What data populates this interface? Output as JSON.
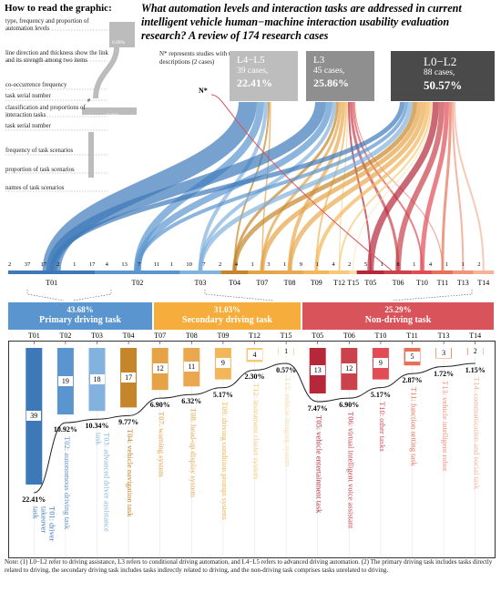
{
  "legend": {
    "title": "How to read the graphic:",
    "items": [
      "type, frequency and proportion of automation levels",
      "line direction and thickness show the link and its strength among two items",
      "co-occurrence frequency",
      "task serial number",
      "classification and proportions of interaction tasks",
      "task serial number",
      "frequency of task scenarios",
      "proportion of task scenarios",
      "names of task scenarios"
    ],
    "sample_pct_a": "0.00%",
    "sample_pct_b": "0.00%",
    "sample_hash": "#"
  },
  "title": "What automation levels and interaction tasks are addressed in current intelligent vehicle human−machine interaction usability evaluation research? A review of 174 research cases",
  "nstar_note": "N* represents studies with unclear automation level descriptions (2 cases)",
  "nstar_label": "N*",
  "automation_levels": [
    {
      "name": "L4−L5",
      "cases": "39 cases,",
      "pct": "22.41%",
      "color": "#bdbdbd"
    },
    {
      "name": "L3",
      "cases": "45 cases,",
      "pct": "25.86%",
      "color": "#8f8f8f"
    },
    {
      "name": "L0−L2",
      "cases": "88 cases,",
      "pct": "50.57%",
      "color": "#4a4a4a"
    }
  ],
  "flow_bar_tasks": [
    "T01",
    "T02",
    "T03",
    "T04",
    "T07",
    "T08",
    "T09",
    "T12",
    "T15",
    "T05",
    "T06",
    "T10",
    "T11",
    "T13",
    "T14"
  ],
  "flow_counts": [
    {
      "v": "2"
    },
    {
      "v": "37"
    },
    {
      "v": "17"
    },
    {
      "v": "2"
    },
    {
      "v": "1"
    },
    {
      "v": "17"
    },
    {
      "v": "4"
    },
    {
      "v": "13"
    },
    {
      "v": "7"
    },
    {
      "v": "11"
    },
    {
      "v": "1"
    },
    {
      "v": "10"
    },
    {
      "v": "7"
    },
    {
      "v": "2"
    },
    {
      "v": "4"
    },
    {
      "v": "1"
    },
    {
      "v": "3"
    },
    {
      "v": "1"
    },
    {
      "v": "9"
    },
    {
      "v": "1"
    },
    {
      "v": "4"
    },
    {
      "v": "2"
    },
    {
      "v": "5"
    },
    {
      "v": "1"
    },
    {
      "v": "8"
    },
    {
      "v": "1"
    },
    {
      "v": "4"
    },
    {
      "v": "1"
    },
    {
      "v": "1"
    },
    {
      "v": "2"
    }
  ],
  "categories": [
    {
      "pct": "43.68%",
      "name": "Primary driving task",
      "color": "#5b95cf"
    },
    {
      "pct": "31.03%",
      "name": "Secondary driving task",
      "color": "#f6ad3c"
    },
    {
      "pct": "25.29%",
      "name": "Non-driving task",
      "color": "#d9535a"
    }
  ],
  "tasks": [
    {
      "id": "T01",
      "count": 39,
      "pct": "22.41%",
      "name": "T01: driver takeover task",
      "color": "#3d79b9"
    },
    {
      "id": "T02",
      "count": 19,
      "pct": "10.92%",
      "name": "T02: autonomous driving task",
      "color": "#5b95cf"
    },
    {
      "id": "T03",
      "count": 18,
      "pct": "10.34%",
      "name": "T03: advanced driver assistance task",
      "color": "#82b2dd"
    },
    {
      "id": "T04",
      "count": 17,
      "pct": "9.77%",
      "name": "T04: vehicle navigation task",
      "color": "#c5862b"
    },
    {
      "id": "T07",
      "count": 12,
      "pct": "6.90%",
      "name": "T07: warning system",
      "color": "#e6a345"
    },
    {
      "id": "T08",
      "count": 11,
      "pct": "6.32%",
      "name": "T08: head-up display system",
      "color": "#e9a850"
    },
    {
      "id": "T09",
      "count": 9,
      "pct": "5.17%",
      "name": "T09: driving condition prompt system",
      "color": "#f2b75a"
    },
    {
      "id": "T12",
      "count": 4,
      "pct": "2.30%",
      "name": "T12: instrument cluster system",
      "color": "#f5c978"
    },
    {
      "id": "T15",
      "count": 1,
      "pct": "0.57%",
      "name": "T15: vehicle imaging system",
      "color": "#f9dea6"
    },
    {
      "id": "T05",
      "count": 13,
      "pct": "7.47%",
      "name": "T05: vehicle entertainment task",
      "color": "#b5283a"
    },
    {
      "id": "T06",
      "count": 12,
      "pct": "6.90%",
      "name": "T06: virtual intelligent voice assistant",
      "color": "#c9424c"
    },
    {
      "id": "T10",
      "count": 9,
      "pct": "5.17%",
      "name": "T10: other tasks",
      "color": "#e24c55"
    },
    {
      "id": "T11",
      "count": 5,
      "pct": "2.87%",
      "name": "T11: function setting task",
      "color": "#e87059"
    },
    {
      "id": "T13",
      "count": 3,
      "pct": "1.72%",
      "name": "T13: vehicle intelligent robot",
      "color": "#f0957a"
    },
    {
      "id": "T14",
      "count": 2,
      "pct": "1.15%",
      "name": "T14: communication and social task",
      "color": "#f5b298"
    }
  ],
  "note": "Note: (1) L0−L2 refer to driving assistance, L3 refers to conditional driving automation, and L4−L5 refers to advanced driving automation. (2) The primary driving task includes tasks directly related to driving, the secondary driving task includes tasks indirectly related to driving, and the non-driving task comprises tasks unrelated to driving."
}
